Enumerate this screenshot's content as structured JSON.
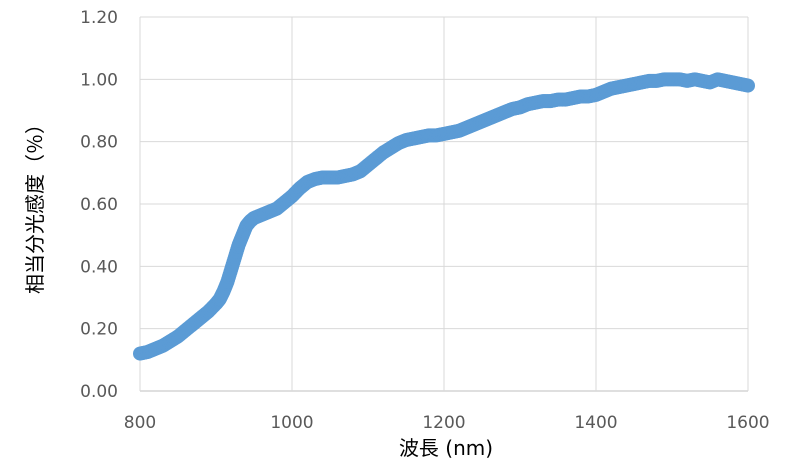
{
  "chart_data": {
    "type": "scatter",
    "title": "",
    "xlabel": "波長 (nm)",
    "ylabel": "相当分光感度（％）",
    "xlim": [
      800,
      1600
    ],
    "ylim": [
      0.0,
      1.2
    ],
    "x_ticks": [
      800,
      1000,
      1200,
      1400,
      1600
    ],
    "y_ticks": [
      "0.00",
      "0.20",
      "0.40",
      "0.60",
      "0.80",
      "1.00",
      "1.20"
    ],
    "grid": true,
    "legend": "none",
    "marker_color": "#5B9BD5",
    "series": [
      {
        "points": [
          [
            800,
            0.12
          ],
          [
            810,
            0.125
          ],
          [
            820,
            0.135
          ],
          [
            830,
            0.145
          ],
          [
            840,
            0.16
          ],
          [
            850,
            0.175
          ],
          [
            860,
            0.195
          ],
          [
            870,
            0.215
          ],
          [
            880,
            0.235
          ],
          [
            890,
            0.255
          ],
          [
            900,
            0.28
          ],
          [
            905,
            0.295
          ],
          [
            910,
            0.32
          ],
          [
            915,
            0.35
          ],
          [
            920,
            0.39
          ],
          [
            925,
            0.43
          ],
          [
            930,
            0.47
          ],
          [
            935,
            0.5
          ],
          [
            940,
            0.53
          ],
          [
            945,
            0.545
          ],
          [
            950,
            0.555
          ],
          [
            960,
            0.565
          ],
          [
            970,
            0.575
          ],
          [
            980,
            0.585
          ],
          [
            990,
            0.605
          ],
          [
            1000,
            0.625
          ],
          [
            1010,
            0.65
          ],
          [
            1020,
            0.67
          ],
          [
            1030,
            0.68
          ],
          [
            1040,
            0.685
          ],
          [
            1050,
            0.685
          ],
          [
            1060,
            0.685
          ],
          [
            1070,
            0.69
          ],
          [
            1080,
            0.695
          ],
          [
            1090,
            0.705
          ],
          [
            1100,
            0.725
          ],
          [
            1110,
            0.745
          ],
          [
            1120,
            0.765
          ],
          [
            1130,
            0.78
          ],
          [
            1140,
            0.795
          ],
          [
            1150,
            0.805
          ],
          [
            1160,
            0.81
          ],
          [
            1170,
            0.815
          ],
          [
            1180,
            0.82
          ],
          [
            1190,
            0.82
          ],
          [
            1200,
            0.825
          ],
          [
            1210,
            0.83
          ],
          [
            1220,
            0.835
          ],
          [
            1230,
            0.845
          ],
          [
            1240,
            0.855
          ],
          [
            1250,
            0.865
          ],
          [
            1260,
            0.875
          ],
          [
            1270,
            0.885
          ],
          [
            1280,
            0.895
          ],
          [
            1290,
            0.905
          ],
          [
            1300,
            0.91
          ],
          [
            1310,
            0.92
          ],
          [
            1320,
            0.925
          ],
          [
            1330,
            0.93
          ],
          [
            1340,
            0.93
          ],
          [
            1350,
            0.935
          ],
          [
            1360,
            0.935
          ],
          [
            1370,
            0.94
          ],
          [
            1380,
            0.945
          ],
          [
            1390,
            0.945
          ],
          [
            1400,
            0.95
          ],
          [
            1410,
            0.96
          ],
          [
            1420,
            0.97
          ],
          [
            1430,
            0.975
          ],
          [
            1440,
            0.98
          ],
          [
            1450,
            0.985
          ],
          [
            1460,
            0.99
          ],
          [
            1470,
            0.995
          ],
          [
            1480,
            0.995
          ],
          [
            1490,
            1.0
          ],
          [
            1500,
            1.0
          ],
          [
            1510,
            1.0
          ],
          [
            1520,
            0.995
          ],
          [
            1530,
            1.0
          ],
          [
            1540,
            0.995
          ],
          [
            1550,
            0.99
          ],
          [
            1560,
            1.0
          ],
          [
            1570,
            0.995
          ],
          [
            1580,
            0.99
          ],
          [
            1590,
            0.985
          ],
          [
            1600,
            0.98
          ]
        ]
      }
    ]
  }
}
